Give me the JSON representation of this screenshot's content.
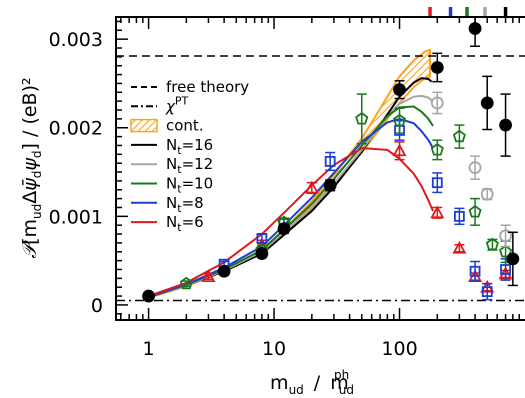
{
  "chart_data": {
    "type": "scatter",
    "title": "",
    "xlabel": "m_ud / m_ud^ph",
    "ylabel": "P[m_ud Δψ̄_d ψ_d] / (eB)²",
    "xscale": "log",
    "xlim": [
      0.55,
      1000
    ],
    "ylim": [
      -0.00017,
      0.00325
    ],
    "xticks": [
      1,
      10,
      100
    ],
    "xtick_labels": [
      "1",
      "10",
      "100"
    ],
    "yticks": [
      0,
      0.001,
      0.002,
      0.003
    ],
    "ytick_labels": [
      "0",
      "0.001",
      "0.002",
      "0.003"
    ],
    "grid": false,
    "legend_placement": "left-center",
    "legend": [
      {
        "label": "free theory",
        "style": "dashed",
        "color": "#000000"
      },
      {
        "label": "χPT",
        "style": "dashdot",
        "color": "#000000"
      },
      {
        "label": "cont.",
        "style": "hatch",
        "color": "#ffa31a"
      },
      {
        "label": "N_t=16",
        "style": "solid",
        "color": "#000000"
      },
      {
        "label": "N_t=12",
        "style": "solid",
        "color": "#a6a6a6"
      },
      {
        "label": "N_t=10",
        "style": "solid",
        "color": "#1a7a1a"
      },
      {
        "label": "N_t=8",
        "style": "solid",
        "color": "#1a3fd1"
      },
      {
        "label": "N_t=6",
        "style": "solid",
        "color": "#e0191e"
      }
    ],
    "reference_lines": [
      {
        "name": "free theory",
        "y": 0.00281
      },
      {
        "name": "χPT",
        "y": 5e-05
      }
    ],
    "top_markers": [
      {
        "x": 175,
        "color": "#e0191e"
      },
      {
        "x": 255,
        "color": "#1a3fd1"
      },
      {
        "x": 345,
        "color": "#1a7a1a"
      },
      {
        "x": 480,
        "color": "#a6a6a6"
      },
      {
        "x": 700,
        "color": "#000000"
      }
    ],
    "band": {
      "name": "cont.",
      "x": [
        1,
        2,
        4,
        8,
        12,
        20,
        30,
        50,
        80,
        100,
        130,
        160,
        175
      ],
      "lower": [
        8e-05,
        0.00021,
        0.00039,
        0.00058,
        0.0008,
        0.00109,
        0.00135,
        0.00172,
        0.0021,
        0.00228,
        0.00246,
        0.00256,
        0.00258
      ],
      "upper": [
        9e-05,
        0.00022,
        0.0004,
        0.00061,
        0.00085,
        0.00117,
        0.00147,
        0.00188,
        0.00235,
        0.00258,
        0.00276,
        0.00286,
        0.00288
      ]
    },
    "series": [
      {
        "name": "N_t=16",
        "color": "#000000",
        "marker": "circle",
        "filled": true,
        "curve": {
          "x": [
            1,
            2,
            4,
            8,
            12,
            20,
            30,
            50,
            80,
            100,
            130,
            150,
            170,
            180
          ],
          "y": [
            9e-05,
            0.00022,
            0.00038,
            0.00058,
            0.00079,
            0.00106,
            0.00133,
            0.00173,
            0.00215,
            0.00235,
            0.00251,
            0.00256,
            0.00255,
            0.00252
          ]
        },
        "points": [
          {
            "x": 1,
            "y": 0.0001,
            "err": 2e-05
          },
          {
            "x": 4,
            "y": 0.00038,
            "err": 3e-05
          },
          {
            "x": 8,
            "y": 0.00058,
            "err": 4e-05
          },
          {
            "x": 12,
            "y": 0.00086,
            "err": 5e-05
          },
          {
            "x": 28,
            "y": 0.00135,
            "err": 6e-05
          },
          {
            "x": 100,
            "y": 0.00243,
            "err": 0.0001
          },
          {
            "x": 200,
            "y": 0.00268,
            "err": 0.00016
          },
          {
            "x": 400,
            "y": 0.00312,
            "err": 0.0002
          },
          {
            "x": 500,
            "y": 0.00228,
            "err": 0.0003
          },
          {
            "x": 700,
            "y": 0.00203,
            "err": 0.00035
          },
          {
            "x": 800,
            "y": 0.00052,
            "err": 0.0003
          }
        ]
      },
      {
        "name": "N_t=12",
        "color": "#a6a6a6",
        "marker": "circle",
        "filled": false,
        "curve": {
          "x": [
            1,
            2,
            4,
            8,
            12,
            20,
            30,
            50,
            80,
            100,
            130,
            150,
            170,
            180
          ],
          "y": [
            9e-05,
            0.00022,
            0.00039,
            0.0006,
            0.00082,
            0.0011,
            0.00137,
            0.00175,
            0.00212,
            0.00227,
            0.00235,
            0.00236,
            0.00234,
            0.00231
          ]
        },
        "points": [
          {
            "x": 200,
            "y": 0.00228,
            "err": 0.00012
          },
          {
            "x": 400,
            "y": 0.00155,
            "err": 0.00013
          },
          {
            "x": 500,
            "y": 0.00125,
            "err": 6e-05
          },
          {
            "x": 700,
            "y": 0.00078,
            "err": 0.00012
          }
        ]
      },
      {
        "name": "N_t=10",
        "color": "#1a7a1a",
        "marker": "pentagon",
        "filled": false,
        "curve": {
          "x": [
            1,
            2,
            4,
            8,
            12,
            20,
            30,
            50,
            80,
            100,
            130,
            150,
            170,
            185
          ],
          "y": [
            9e-05,
            0.00023,
            0.0004,
            0.00062,
            0.00085,
            0.00114,
            0.00142,
            0.0018,
            0.00213,
            0.00223,
            0.00224,
            0.00218,
            0.0021,
            0.00202
          ]
        },
        "points": [
          {
            "x": 2,
            "y": 0.00024,
            "err": 3e-05
          },
          {
            "x": 8,
            "y": 0.00062,
            "err": 5e-05
          },
          {
            "x": 12,
            "y": 0.00093,
            "err": 5e-05
          },
          {
            "x": 50,
            "y": 0.0021,
            "err": 0.00028
          },
          {
            "x": 100,
            "y": 0.00208,
            "err": 0.00014
          },
          {
            "x": 200,
            "y": 0.00175,
            "err": 0.00011
          },
          {
            "x": 300,
            "y": 0.0019,
            "err": 0.00013
          },
          {
            "x": 400,
            "y": 0.00105,
            "err": 0.00015
          },
          {
            "x": 550,
            "y": 0.00068,
            "err": 6e-05
          },
          {
            "x": 700,
            "y": 0.0006,
            "err": 0.00012
          }
        ]
      },
      {
        "name": "N_t=8",
        "color": "#1a3fd1",
        "marker": "square",
        "filled": false,
        "curve": {
          "x": [
            1,
            2,
            4,
            8,
            12,
            20,
            30,
            50,
            80,
            100,
            130,
            150,
            170,
            185
          ],
          "y": [
            9e-05,
            0.00023,
            0.00042,
            0.00066,
            0.0009,
            0.00121,
            0.00149,
            0.00184,
            0.00206,
            0.0021,
            0.00205,
            0.00196,
            0.00186,
            0.00177
          ]
        },
        "points": [
          {
            "x": 4,
            "y": 0.00046,
            "err": 3e-05
          },
          {
            "x": 8,
            "y": 0.00075,
            "err": 5e-05
          },
          {
            "x": 12,
            "y": 0.00092,
            "err": 5e-05
          },
          {
            "x": 28,
            "y": 0.00162,
            "err": 0.0001
          },
          {
            "x": 100,
            "y": 0.00197,
            "err": 0.00011
          },
          {
            "x": 200,
            "y": 0.00138,
            "err": 0.00011
          },
          {
            "x": 300,
            "y": 0.001,
            "err": 9e-05
          },
          {
            "x": 400,
            "y": 0.00038,
            "err": 0.00011
          },
          {
            "x": 500,
            "y": 0.00015,
            "err": 9e-05
          },
          {
            "x": 700,
            "y": 0.0004,
            "err": 0.00012
          }
        ]
      },
      {
        "name": "N_t=6",
        "color": "#e0191e",
        "marker": "triangle",
        "filled": false,
        "curve": {
          "x": [
            1,
            2,
            4,
            8,
            12,
            20,
            30,
            50,
            80,
            100,
            130,
            150,
            170,
            185
          ],
          "y": [
            0.0001,
            0.00025,
            0.00048,
            0.0008,
            0.00104,
            0.00135,
            0.00158,
            0.00177,
            0.00175,
            0.00165,
            0.00148,
            0.00134,
            0.00118,
            0.00106
          ]
        },
        "points": [
          {
            "x": 3,
            "y": 0.00032,
            "err": 3e-05
          },
          {
            "x": 8,
            "y": 0.00068,
            "err": 5e-05
          },
          {
            "x": 20,
            "y": 0.00132,
            "err": 6e-05
          },
          {
            "x": 100,
            "y": 0.00174,
            "err": 0.0001
          },
          {
            "x": 200,
            "y": 0.00104,
            "err": 6e-05
          },
          {
            "x": 300,
            "y": 0.00064,
            "err": 4e-05
          },
          {
            "x": 400,
            "y": 0.00032,
            "err": 4e-05
          },
          {
            "x": 500,
            "y": 0.0002,
            "err": 4e-05
          },
          {
            "x": 700,
            "y": 0.00035,
            "err": 4e-05
          }
        ]
      }
    ]
  }
}
